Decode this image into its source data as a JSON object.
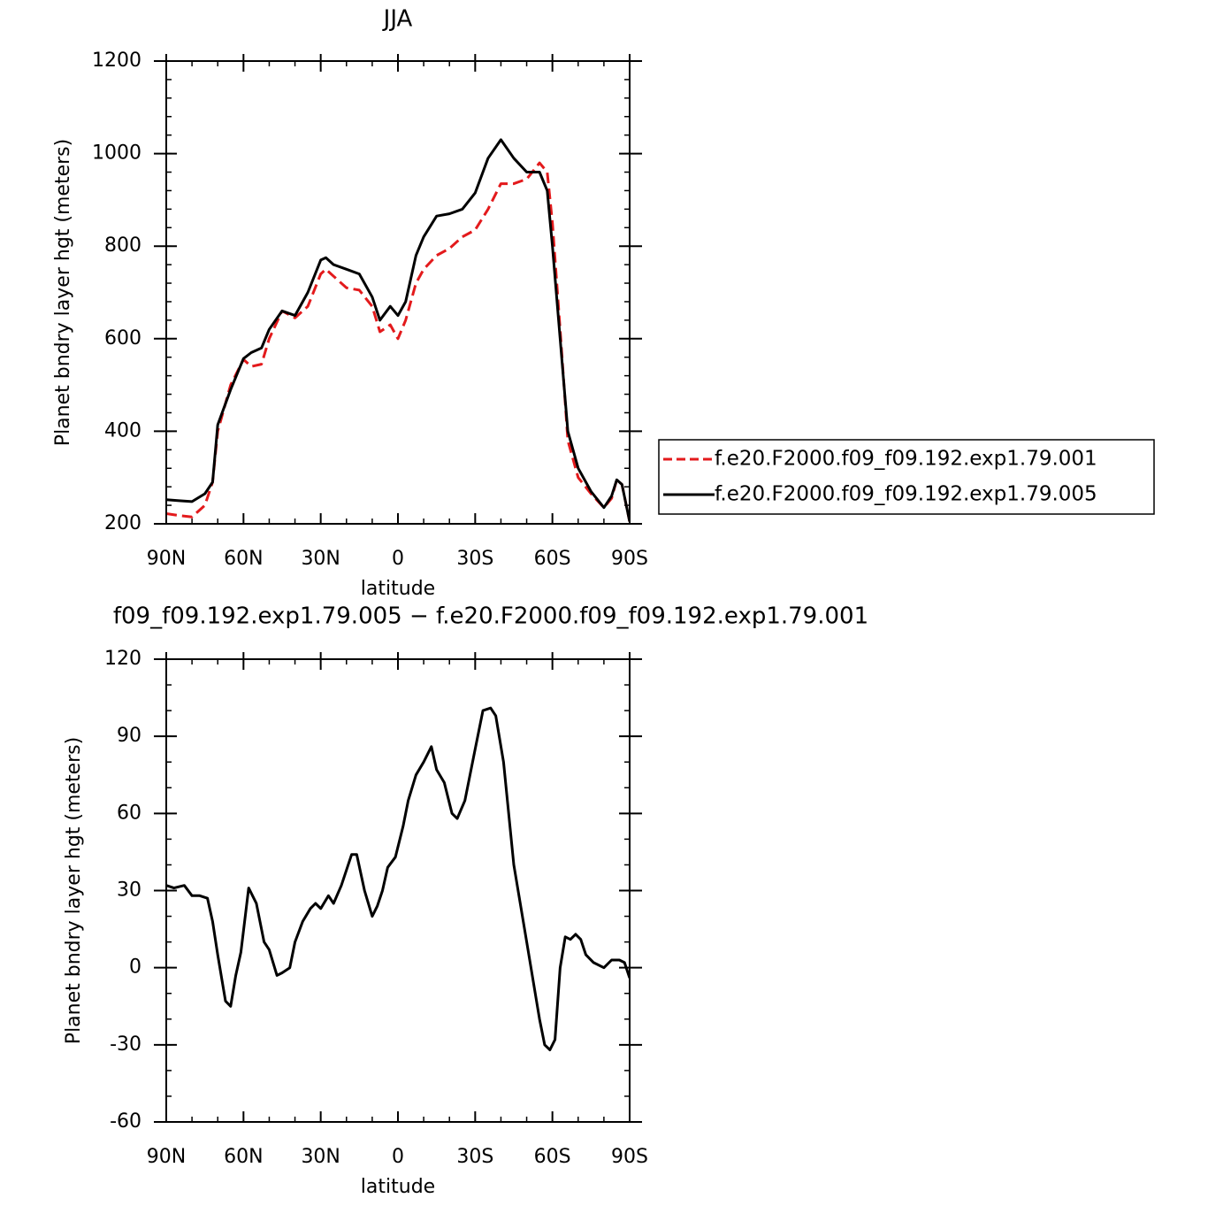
{
  "chart_data": [
    {
      "type": "line",
      "title": "JJA",
      "xlabel": "latitude",
      "ylabel": "Planet bndry layer hgt (meters)",
      "x": [
        90,
        85,
        80,
        75,
        72,
        70,
        65,
        60,
        57,
        53,
        50,
        45,
        40,
        35,
        30,
        28,
        25,
        20,
        15,
        10,
        7,
        3,
        0,
        -3,
        -7,
        -10,
        -15,
        -20,
        -25,
        -30,
        -35,
        -40,
        -45,
        -50,
        -55,
        -58,
        -60,
        -63,
        -66,
        -70,
        -75,
        -80,
        -83,
        -85,
        -87,
        -90
      ],
      "series": [
        {
          "name": "f.e20.F2000.f09_f09.192.exp1.79.001",
          "color": "#e31a1c",
          "line_style": "dashed",
          "values": [
            222,
            218,
            215,
            240,
            290,
            400,
            500,
            555,
            540,
            545,
            600,
            660,
            645,
            670,
            740,
            750,
            735,
            710,
            705,
            670,
            615,
            630,
            600,
            640,
            720,
            750,
            780,
            795,
            820,
            835,
            880,
            935,
            935,
            945,
            980,
            960,
            850,
            620,
            380,
            300,
            265,
            235,
            255,
            295,
            285,
            205
          ]
        },
        {
          "name": "f.e20.F2000.f09_f09.192.exp1.79.005",
          "color": "#000000",
          "line_style": "solid",
          "values": [
            252,
            250,
            248,
            265,
            290,
            414,
            490,
            557,
            570,
            580,
            620,
            660,
            650,
            700,
            770,
            775,
            760,
            750,
            740,
            690,
            640,
            670,
            650,
            680,
            780,
            820,
            865,
            870,
            880,
            915,
            990,
            1030,
            990,
            960,
            960,
            920,
            800,
            600,
            400,
            320,
            270,
            235,
            260,
            295,
            285,
            205
          ]
        }
      ],
      "xlim": [
        90,
        -90
      ],
      "xticks": [
        {
          "value": 90,
          "label": "90N"
        },
        {
          "value": 60,
          "label": "60N"
        },
        {
          "value": 30,
          "label": "30N"
        },
        0,
        {
          "value": -30,
          "label": "30S"
        },
        {
          "value": -60,
          "label": "60S"
        },
        {
          "value": -90,
          "label": "90S"
        }
      ],
      "ylim": [
        200,
        1200
      ],
      "yticks": [
        200,
        400,
        600,
        800,
        1000,
        1200
      ],
      "legend": "right"
    },
    {
      "type": "line",
      "title": "f09_f09.192.exp1.79.005 − f.e20.F2000.f09_f09.192.exp1.79.001",
      "xlabel": "latitude",
      "ylabel": "Planet bndry layer hgt (meters)",
      "x": [
        90,
        87,
        83,
        80,
        77,
        74,
        72,
        70,
        67,
        65,
        63,
        61,
        58,
        55,
        52,
        50,
        47,
        45,
        42,
        40,
        37,
        34,
        32,
        30,
        27,
        25,
        22,
        18,
        16,
        13,
        10,
        8,
        6,
        4,
        1,
        -2,
        -4,
        -7,
        -10,
        -13,
        -15,
        -18,
        -21,
        -23,
        -26,
        -30,
        -33,
        -36,
        -38,
        -41,
        -45,
        -50,
        -55,
        -57,
        -59,
        -61,
        -63,
        -65,
        -67,
        -69,
        -71,
        -73,
        -76,
        -80,
        -83,
        -86,
        -88,
        -90
      ],
      "series": [
        {
          "color": "#000000",
          "line_style": "solid",
          "values": [
            32,
            31,
            32,
            28,
            28,
            27,
            18,
            5,
            -13,
            -15,
            -3,
            6,
            31,
            25,
            10,
            7,
            -3,
            -2,
            0,
            10,
            18,
            23,
            25,
            23,
            28,
            25,
            32,
            44,
            44,
            30,
            20,
            24,
            30,
            39,
            43,
            55,
            65,
            75,
            80,
            86,
            77,
            72,
            60,
            58,
            65,
            85,
            100,
            101,
            98,
            80,
            40,
            10,
            -20,
            -30,
            -32,
            -28,
            0,
            12,
            11,
            13,
            11,
            5,
            2,
            0,
            3,
            3,
            2,
            -4
          ]
        }
      ],
      "xlim": [
        90,
        -90
      ],
      "xticks": [
        {
          "value": 90,
          "label": "90N"
        },
        {
          "value": 60,
          "label": "60N"
        },
        {
          "value": 30,
          "label": "30N"
        },
        0,
        {
          "value": -30,
          "label": "30S"
        },
        {
          "value": -60,
          "label": "60S"
        },
        {
          "value": -90,
          "label": "90S"
        }
      ],
      "ylim": [
        -60,
        120
      ],
      "yticks": [
        -60,
        -30,
        0,
        30,
        60,
        90,
        120
      ]
    }
  ]
}
